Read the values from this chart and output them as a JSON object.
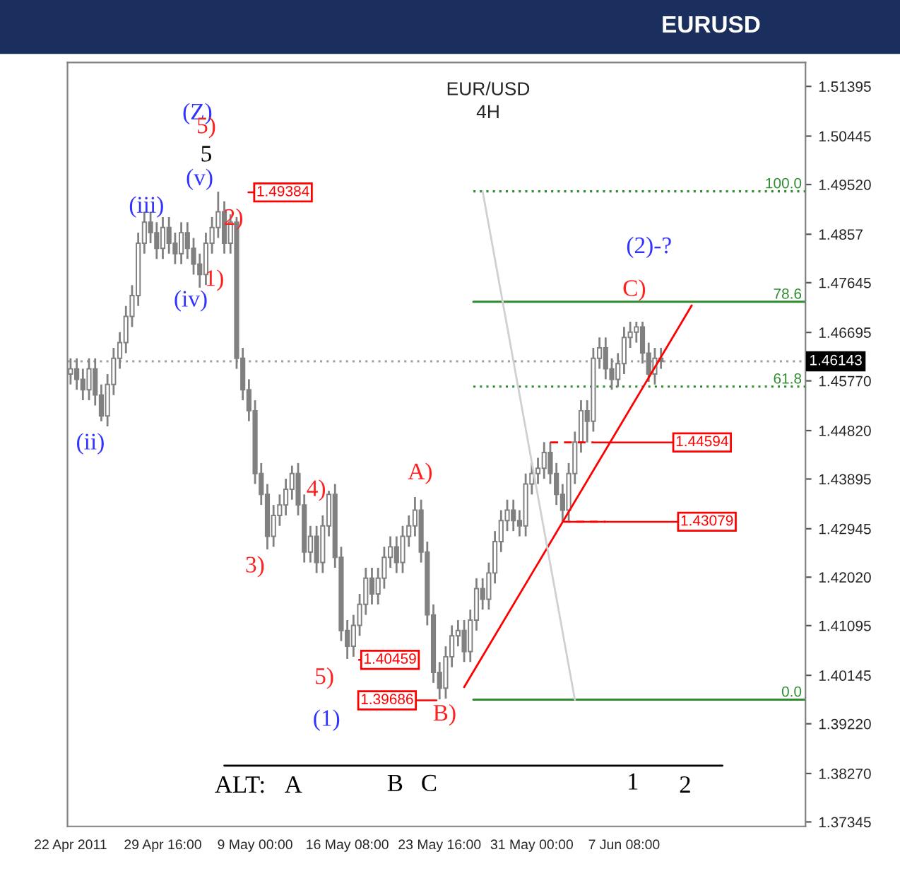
{
  "chart_data": {
    "type": "candlestick",
    "title": "EUR/USD",
    "subtitle": "4H",
    "categories": [
      "22 Apr 2011",
      null,
      null,
      null,
      null,
      null,
      null,
      null,
      null,
      null,
      null,
      null,
      null,
      null,
      null,
      "29 Apr 16:00",
      null,
      null,
      null,
      null,
      null,
      null,
      null,
      null,
      null,
      null,
      null,
      null,
      null,
      null,
      "9 May 00:00",
      null,
      null,
      null,
      null,
      null,
      null,
      null,
      null,
      null,
      null,
      null,
      null,
      null,
      null,
      "16 May 08:00",
      null,
      null,
      null,
      null,
      null,
      null,
      null,
      null,
      null,
      null,
      null,
      null,
      null,
      null,
      "23 May 16:00",
      null,
      null,
      null,
      null,
      null,
      null,
      null,
      null,
      null,
      null,
      null,
      null,
      null,
      null,
      "31 May 00:00",
      null,
      null,
      null,
      null,
      null,
      null,
      null,
      null,
      null,
      null,
      null,
      null,
      null,
      null,
      "7 Jun 08:00",
      null,
      null,
      null,
      null,
      null,
      null,
      null,
      null,
      null,
      null,
      null,
      null,
      null,
      null,
      null,
      null,
      null,
      null,
      null,
      null,
      null,
      null,
      null,
      null,
      null,
      null,
      null,
      null,
      null
    ],
    "ylim": [
      1.3726,
      1.5185
    ],
    "yticks": [
      1.51395,
      1.50445,
      {
        "value": 1.4952,
        "label": "1.49520"
      },
      1.4857,
      1.47645,
      1.46695,
      {
        "value": 1.4577,
        "label": "1.45770"
      },
      {
        "value": 1.4482,
        "label": "1.44820"
      },
      1.43895,
      1.42945,
      {
        "value": 1.4202,
        "label": "1.42020"
      },
      1.41095,
      1.40145,
      {
        "value": 1.3922,
        "label": "1.39220"
      },
      {
        "value": 1.3827,
        "label": "1.38270"
      },
      1.37345
    ],
    "grid": false,
    "series": [
      {
        "type": "candlestick",
        "color": "#808080",
        "ohlc": [
          [
            1.459,
            1.462,
            1.457,
            1.46
          ],
          [
            1.46,
            1.462,
            1.456,
            1.458
          ],
          [
            1.458,
            1.46,
            1.454,
            1.456
          ],
          [
            1.456,
            1.462,
            1.454,
            1.46
          ],
          [
            1.46,
            1.462,
            1.453,
            1.455
          ],
          [
            1.455,
            1.457,
            1.45,
            1.451
          ],
          [
            1.451,
            1.459,
            1.449,
            1.457
          ],
          [
            1.457,
            1.464,
            1.455,
            1.462
          ],
          [
            1.462,
            1.467,
            1.46,
            1.465
          ],
          [
            1.465,
            1.472,
            1.463,
            1.47
          ],
          [
            1.47,
            1.476,
            1.468,
            1.474
          ],
          [
            1.474,
            1.486,
            1.472,
            1.484
          ],
          [
            1.484,
            1.49,
            1.482,
            1.488
          ],
          [
            1.488,
            1.49,
            1.484,
            1.486
          ],
          [
            1.486,
            1.488,
            1.481,
            1.483
          ],
          [
            1.483,
            1.489,
            1.481,
            1.487
          ],
          [
            1.487,
            1.489,
            1.482,
            1.484
          ],
          [
            1.484,
            1.486,
            1.48,
            1.482
          ],
          [
            1.482,
            1.488,
            1.48,
            1.486
          ],
          [
            1.486,
            1.488,
            1.481,
            1.483
          ],
          [
            1.483,
            1.485,
            1.478,
            1.48
          ],
          [
            1.48,
            1.482,
            1.4755,
            1.478
          ],
          [
            1.478,
            1.486,
            1.476,
            1.484
          ],
          [
            1.484,
            1.489,
            1.482,
            1.487
          ],
          [
            1.487,
            1.49384,
            1.485,
            1.49
          ],
          [
            1.49,
            1.492,
            1.482,
            1.484
          ],
          [
            1.484,
            1.4895,
            1.482,
            1.488
          ],
          [
            1.488,
            1.489,
            1.46,
            1.462
          ],
          [
            1.462,
            1.464,
            1.454,
            1.456
          ],
          [
            1.456,
            1.458,
            1.45,
            1.452
          ],
          [
            1.452,
            1.454,
            1.438,
            1.44
          ],
          [
            1.44,
            1.442,
            1.434,
            1.436
          ],
          [
            1.436,
            1.438,
            1.4255,
            1.428
          ],
          [
            1.428,
            1.434,
            1.426,
            1.432
          ],
          [
            1.432,
            1.436,
            1.43,
            1.434
          ],
          [
            1.434,
            1.439,
            1.432,
            1.437
          ],
          [
            1.437,
            1.4415,
            1.435,
            1.44
          ],
          [
            1.44,
            1.442,
            1.432,
            1.434
          ],
          [
            1.434,
            1.436,
            1.423,
            1.425
          ],
          [
            1.425,
            1.43,
            1.423,
            1.428
          ],
          [
            1.428,
            1.43,
            1.421,
            1.423
          ],
          [
            1.423,
            1.432,
            1.421,
            1.43
          ],
          [
            1.43,
            1.4367,
            1.428,
            1.436
          ],
          [
            1.436,
            1.438,
            1.422,
            1.424
          ],
          [
            1.424,
            1.426,
            1.408,
            1.41
          ],
          [
            1.41,
            1.412,
            1.40459,
            1.407
          ],
          [
            1.407,
            1.413,
            1.405,
            1.411
          ],
          [
            1.411,
            1.417,
            1.409,
            1.415
          ],
          [
            1.415,
            1.422,
            1.413,
            1.42
          ],
          [
            1.42,
            1.422,
            1.415,
            1.417
          ],
          [
            1.417,
            1.422,
            1.415,
            1.42
          ],
          [
            1.42,
            1.426,
            1.418,
            1.424
          ],
          [
            1.424,
            1.428,
            1.422,
            1.426
          ],
          [
            1.426,
            1.428,
            1.421,
            1.423
          ],
          [
            1.423,
            1.43,
            1.421,
            1.428
          ],
          [
            1.428,
            1.432,
            1.426,
            1.43
          ],
          [
            1.43,
            1.4355,
            1.428,
            1.433
          ],
          [
            1.433,
            1.435,
            1.423,
            1.425
          ],
          [
            1.425,
            1.427,
            1.411,
            1.413
          ],
          [
            1.413,
            1.415,
            1.4,
            1.402
          ],
          [
            1.402,
            1.404,
            1.39686,
            1.399
          ],
          [
            1.399,
            1.407,
            1.397,
            1.405
          ],
          [
            1.405,
            1.411,
            1.403,
            1.409
          ],
          [
            1.409,
            1.412,
            1.407,
            1.41
          ],
          [
            1.41,
            1.412,
            1.404,
            1.406
          ],
          [
            1.406,
            1.414,
            1.404,
            1.412
          ],
          [
            1.412,
            1.42,
            1.41,
            1.418
          ],
          [
            1.418,
            1.42,
            1.414,
            1.416
          ],
          [
            1.416,
            1.423,
            1.414,
            1.421
          ],
          [
            1.421,
            1.429,
            1.419,
            1.427
          ],
          [
            1.427,
            1.433,
            1.425,
            1.431
          ],
          [
            1.431,
            1.435,
            1.429,
            1.433
          ],
          [
            1.433,
            1.435,
            1.429,
            1.431
          ],
          [
            1.431,
            1.433,
            1.428,
            1.43
          ],
          [
            1.43,
            1.44,
            1.428,
            1.438
          ],
          [
            1.438,
            1.442,
            1.436,
            1.44
          ],
          [
            1.44,
            1.443,
            1.438,
            1.441
          ],
          [
            1.441,
            1.446,
            1.439,
            1.444
          ],
          [
            1.444,
            1.446,
            1.438,
            1.44
          ],
          [
            1.44,
            1.442,
            1.434,
            1.436
          ],
          [
            1.436,
            1.438,
            1.43079,
            1.433
          ],
          [
            1.433,
            1.442,
            1.431,
            1.44
          ],
          [
            1.44,
            1.448,
            1.438,
            1.446
          ],
          [
            1.446,
            1.454,
            1.444,
            1.452
          ],
          [
            1.452,
            1.454,
            1.44594,
            1.45
          ],
          [
            1.45,
            1.464,
            1.448,
            1.462
          ],
          [
            1.462,
            1.466,
            1.46,
            1.464
          ],
          [
            1.464,
            1.466,
            1.458,
            1.46
          ],
          [
            1.46,
            1.462,
            1.456,
            1.458
          ],
          [
            1.458,
            1.463,
            1.4565,
            1.461
          ],
          [
            1.461,
            1.468,
            1.459,
            1.466
          ],
          [
            1.466,
            1.469,
            1.464,
            1.467
          ],
          [
            1.467,
            1.469,
            1.465,
            1.468
          ],
          [
            1.468,
            1.469,
            1.461,
            1.463
          ],
          [
            1.463,
            1.465,
            1.4575,
            1.459
          ],
          [
            1.459,
            1.464,
            1.457,
            1.462
          ],
          [
            1.462,
            1.464,
            1.46,
            1.4614
          ],
          null,
          null,
          null,
          null,
          null,
          null,
          null,
          null,
          null,
          null,
          null,
          null,
          null,
          null,
          null,
          null,
          null,
          null,
          null,
          null,
          null,
          null,
          null
        ]
      },
      {
        "type": "line",
        "color": "#ff0000",
        "values": [
          null,
          null,
          null,
          null,
          null,
          null,
          null,
          null,
          null,
          null,
          null,
          null,
          null,
          null,
          null,
          null,
          null,
          null,
          null,
          null,
          null,
          null,
          null,
          null,
          null,
          null,
          null,
          null,
          null,
          null,
          null,
          null,
          null,
          null,
          null,
          null,
          null,
          null,
          null,
          null,
          null,
          null,
          null,
          null,
          null,
          null,
          null,
          null,
          null,
          null,
          null,
          null,
          null,
          null,
          null,
          null,
          null,
          null,
          null,
          null,
          null,
          null,
          null,
          null,
          1.3992,
          null,
          null,
          null,
          null,
          null,
          null,
          null,
          null,
          null,
          null,
          null,
          null,
          null,
          null,
          null,
          null,
          null,
          null,
          null,
          null,
          null,
          null,
          null,
          null,
          null,
          null,
          null,
          null,
          null,
          null,
          null,
          null,
          null,
          null,
          null,
          null,
          1.4721,
          null,
          null,
          null,
          null,
          null,
          null,
          null,
          null,
          null,
          null,
          null,
          null,
          null,
          null,
          null,
          null,
          null,
          null
        ]
      },
      {
        "type": "line",
        "color": "#d0d0d0",
        "values": [
          null,
          null,
          null,
          null,
          null,
          null,
          null,
          null,
          null,
          null,
          null,
          null,
          null,
          null,
          null,
          null,
          null,
          null,
          null,
          null,
          null,
          null,
          null,
          null,
          null,
          null,
          null,
          null,
          null,
          null,
          null,
          null,
          null,
          null,
          null,
          null,
          null,
          null,
          null,
          null,
          null,
          null,
          null,
          null,
          null,
          null,
          null,
          null,
          null,
          null,
          null,
          null,
          null,
          null,
          null,
          null,
          null,
          null,
          null,
          null,
          null,
          null,
          null,
          null,
          null,
          null,
          null,
          1.4939,
          null,
          null,
          null,
          null,
          null,
          null,
          null,
          null,
          null,
          null,
          null,
          null,
          null,
          null,
          1.3968,
          null,
          null,
          null,
          null,
          null,
          null,
          null,
          null,
          null,
          null,
          null,
          null,
          null,
          null,
          null,
          null,
          null,
          null,
          null,
          null,
          null,
          null,
          null,
          null,
          null,
          null,
          null,
          null,
          null,
          null,
          null,
          null,
          null,
          null,
          null,
          null,
          null
        ]
      },
      {
        "type": "line",
        "color": "#ff0000",
        "line_style": "dashed",
        "values": [
          null,
          null,
          null,
          null,
          null,
          null,
          null,
          null,
          null,
          null,
          null,
          null,
          null,
          null,
          null,
          null,
          null,
          null,
          null,
          null,
          null,
          null,
          null,
          null,
          null,
          null,
          null,
          null,
          null,
          null,
          null,
          null,
          null,
          null,
          null,
          null,
          null,
          null,
          null,
          null,
          null,
          null,
          null,
          null,
          null,
          null,
          null,
          null,
          null,
          null,
          null,
          null,
          null,
          null,
          null,
          null,
          null,
          null,
          null,
          null,
          null,
          null,
          null,
          null,
          null,
          null,
          null,
          null,
          null,
          null,
          null,
          null,
          null,
          null,
          null,
          null,
          null,
          null,
          1.44594,
          null,
          null,
          null,
          null,
          null,
          null,
          1.44594,
          null,
          null,
          null,
          null,
          null,
          null,
          null,
          null,
          null,
          null,
          null,
          null,
          null,
          null,
          null,
          null,
          null,
          null,
          null,
          null,
          null,
          null,
          null,
          null,
          null,
          null,
          null,
          null,
          null,
          null,
          null,
          null,
          null,
          null
        ]
      },
      {
        "type": "line",
        "color": "#ff0000",
        "line_style": "dashed",
        "values": [
          null,
          null,
          null,
          null,
          null,
          null,
          null,
          null,
          null,
          null,
          null,
          null,
          null,
          null,
          null,
          null,
          null,
          null,
          null,
          null,
          null,
          null,
          null,
          null,
          null,
          null,
          null,
          null,
          null,
          null,
          null,
          null,
          null,
          null,
          null,
          null,
          null,
          null,
          null,
          null,
          null,
          null,
          null,
          null,
          null,
          null,
          null,
          null,
          null,
          null,
          null,
          null,
          null,
          null,
          null,
          null,
          null,
          null,
          null,
          null,
          null,
          null,
          null,
          null,
          null,
          null,
          null,
          null,
          null,
          null,
          null,
          null,
          null,
          null,
          null,
          null,
          null,
          null,
          null,
          null,
          1.43079,
          null,
          null,
          null,
          null,
          null,
          null,
          1.43079,
          null,
          null,
          null,
          null,
          null,
          null,
          null,
          null,
          null,
          null,
          null,
          null,
          null,
          null,
          null,
          null,
          null,
          null,
          null,
          null,
          null,
          null,
          null,
          null,
          null,
          null,
          null,
          null,
          null,
          null,
          null,
          null
        ]
      },
      {
        "type": "line",
        "color": "#000000",
        "values": [
          null,
          null,
          null,
          null,
          null,
          null,
          null,
          null,
          null,
          null,
          null,
          null,
          null,
          null,
          null,
          null,
          null,
          null,
          null,
          null,
          null,
          null,
          null,
          null,
          null,
          1.3842,
          null,
          null,
          null,
          null,
          null,
          null,
          null,
          null,
          null,
          null,
          null,
          null,
          null,
          null,
          null,
          null,
          null,
          null,
          null,
          null,
          null,
          null,
          null,
          null,
          null,
          null,
          null,
          null,
          null,
          null,
          null,
          null,
          null,
          null,
          null,
          null,
          null,
          null,
          null,
          null,
          null,
          null,
          null,
          null,
          null,
          null,
          null,
          null,
          null,
          null,
          null,
          null,
          null,
          null,
          null,
          null,
          null,
          null,
          null,
          null,
          null,
          null,
          null,
          null,
          null,
          null,
          null,
          null,
          null,
          null,
          null,
          null,
          null,
          null,
          null,
          null,
          null,
          null,
          null,
          null,
          1.3842,
          null,
          null,
          null,
          null,
          null,
          null,
          null,
          null,
          null,
          null,
          null,
          null,
          null
        ]
      }
    ],
    "ref_lines": [
      {
        "axis": "y",
        "value": 1.4939,
        "color": "#2e8b2e",
        "line_style": "dotted"
      },
      {
        "axis": "y",
        "value": 1.4728,
        "color": "#2e8b2e",
        "line_style": "solid"
      },
      {
        "axis": "y",
        "value": 1.4566,
        "color": "#2e8b2e",
        "line_style": "dotted"
      },
      {
        "axis": "y",
        "value": 1.3968,
        "color": "#2e8b2e",
        "line_style": "solid"
      },
      {
        "axis": "y",
        "value": 1.46143,
        "label": "1.46143",
        "color": "#a0a0a0",
        "line_style": "dotted"
      }
    ],
    "annotations": [
      "EURUSD",
      "(Z)",
      "5)",
      "5",
      "(v)",
      "(iii)",
      "(iv)",
      "1)",
      "2)",
      "(ii)",
      "3)",
      "4)",
      "5)",
      "(1)",
      "A)",
      "B)",
      "C)",
      "(2)-?",
      "ALT:",
      "A",
      "B",
      "C",
      "1",
      "2",
      {
        "text": "100.0",
        "y": 1.4939
      },
      {
        "text": "78.6",
        "y": 1.4728
      },
      {
        "text": "61.8",
        "y": 1.4566
      },
      {
        "text": "0.0",
        "y": 1.3968
      },
      "1.49384",
      "1.40459",
      "1.39686",
      {
        "text": "1.44594",
        "y": 1.44594
      },
      {
        "text": "1.43079",
        "y": 1.43079
      }
    ]
  }
}
